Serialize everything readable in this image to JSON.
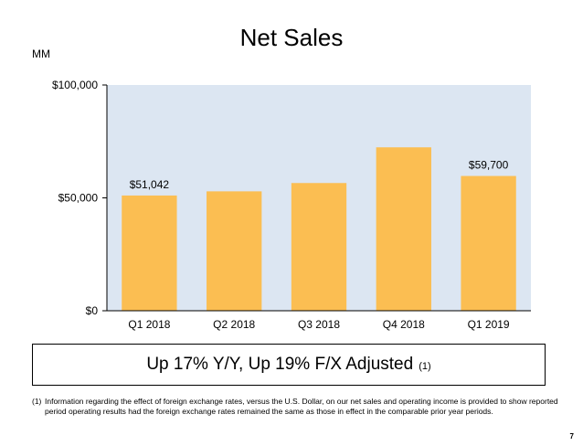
{
  "title": "Net Sales",
  "unit_label": "MM",
  "summary": {
    "text": "Up 17% Y/Y, Up 19% F/X Adjusted",
    "note": "(1)"
  },
  "footnote": {
    "marker": "(1)",
    "text": "Information regarding the effect of foreign exchange rates, versus the U.S. Dollar, on our net sales and operating income is provided to show reported period operating results had the foreign exchange rates remained the same as those in effect in the comparable prior year periods."
  },
  "page_number": "7",
  "colors": {
    "bar": "#FBBE52",
    "plot_background": "#DCE6F2",
    "axis": "#000000"
  },
  "chart_data": {
    "type": "bar",
    "title": "Net Sales",
    "ylabel": "MM",
    "xlabel": "",
    "categories": [
      "Q1 2018",
      "Q2 2018",
      "Q3 2018",
      "Q4 2018",
      "Q1 2019"
    ],
    "values": [
      51042,
      52886,
      56576,
      72383,
      59700
    ],
    "data_labels": [
      "$51,042",
      "",
      "",
      "",
      "$59,700"
    ],
    "ylim": [
      0,
      100000
    ],
    "yticks": [
      0,
      50000,
      100000
    ],
    "ytick_labels": [
      "$0",
      "$50,000",
      "$100,000"
    ],
    "grid": false,
    "legend": "none"
  }
}
